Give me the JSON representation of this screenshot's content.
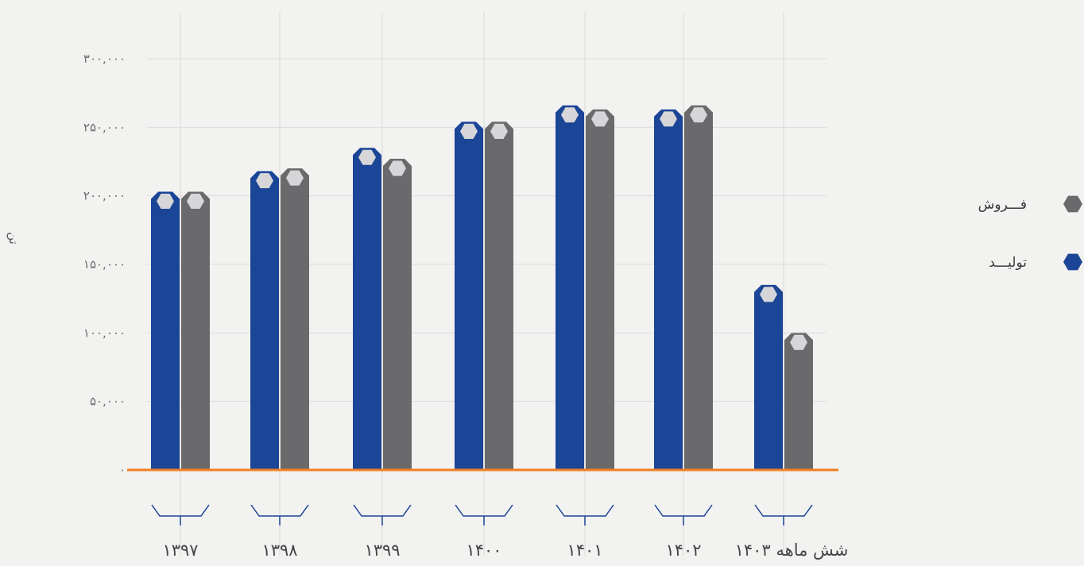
{
  "chart_data": {
    "type": "bar",
    "categories": [
      "۱۳۹۷",
      "۱۳۹۸",
      "۱۳۹۹",
      "۱۴۰۰",
      "۱۴۰۱",
      "۱۴۰۲",
      "شش ماهه ۱۴۰۳"
    ],
    "series": [
      {
        "name": "تولیـــد",
        "color": "#1b4596",
        "values": [
          203000,
          218000,
          235000,
          254000,
          266000,
          263000,
          135000
        ]
      },
      {
        "name": "فـــروش",
        "color": "#6a6a6c",
        "values": [
          203000,
          220000,
          227000,
          254000,
          263000,
          266000,
          100000
        ]
      }
    ],
    "yticks": [
      0,
      50000,
      100000,
      150000,
      200000,
      250000,
      300000
    ],
    "ytick_labels": [
      "۰",
      "۵۰,۰۰۰",
      "۱۰۰,۰۰۰",
      "۱۵۰,۰۰۰",
      "۲۰۰,۰۰۰",
      "۲۵۰,۰۰۰",
      "۳۰۰,۰۰۰"
    ],
    "ylim": [
      0,
      300000
    ],
    "ylabel": "تن",
    "xlabel": "",
    "title": "",
    "grid": true,
    "legend_position": "right",
    "baseline_color": "#f07f21",
    "marker_fill": "#d6d6d8"
  }
}
